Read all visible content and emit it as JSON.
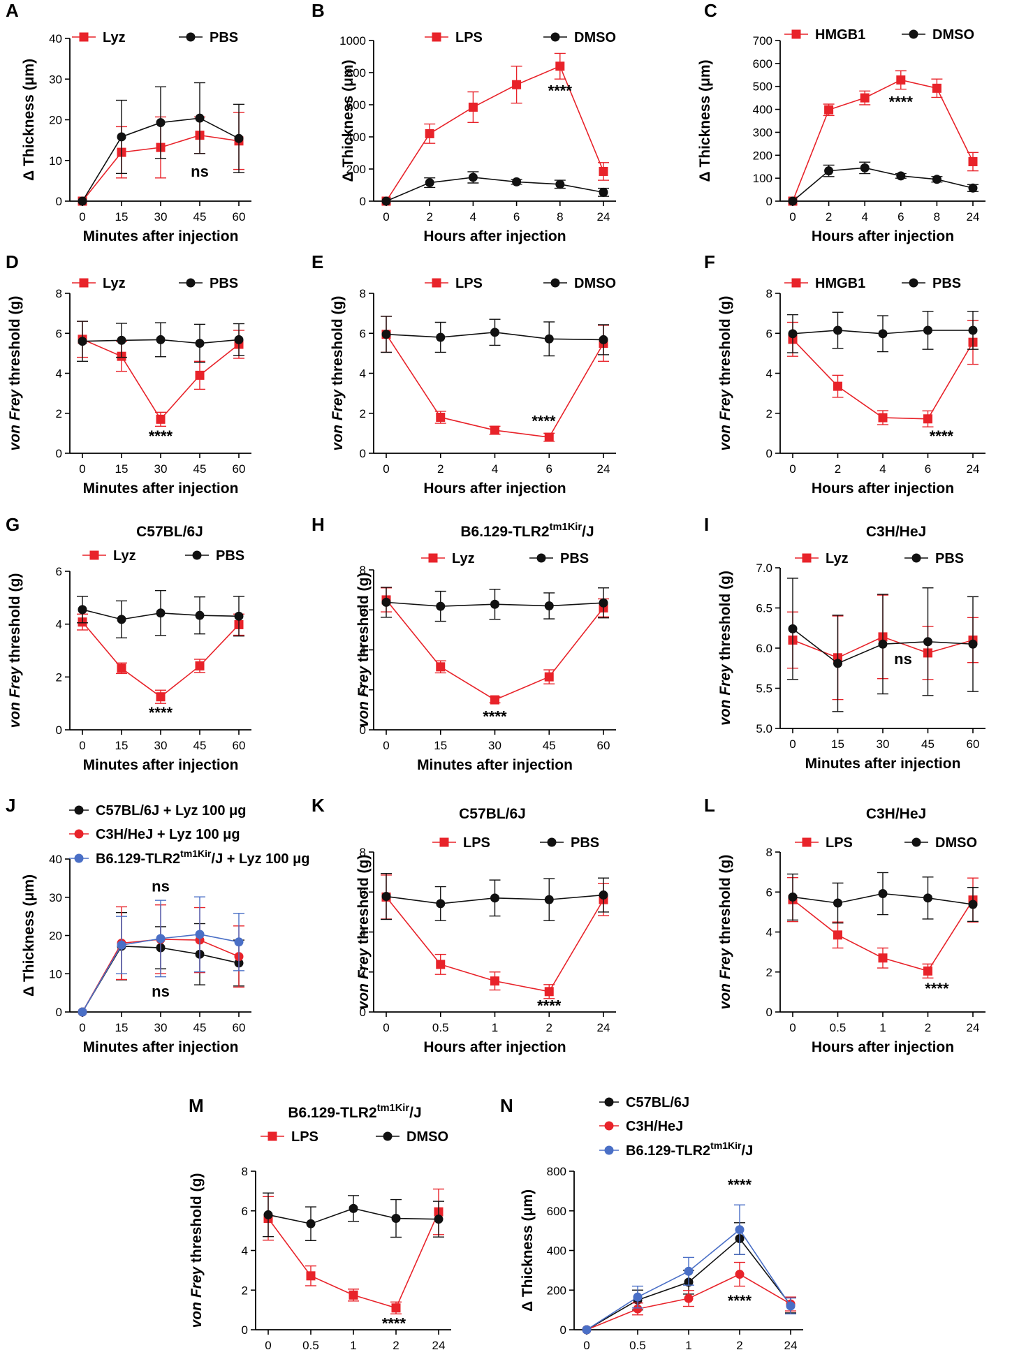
{
  "colors": {
    "red": "#e8232a",
    "black": "#111111",
    "blue": "#4a6fc6",
    "axis": "#000000"
  },
  "chart_data": [
    {
      "id": "A",
      "letter": "A",
      "type": "line",
      "title": "",
      "xlabel": "Minutes after injection",
      "ylabel": "Δ Thickness (μm)",
      "categories": [
        "0",
        "15",
        "30",
        "45",
        "60"
      ],
      "yticks": [
        "0",
        "10",
        "20",
        "30",
        "40"
      ],
      "ylim": [
        0,
        40
      ],
      "series": [
        {
          "name": "Lyz",
          "color": "red",
          "marker": "square",
          "values": [
            0,
            12,
            13.2,
            16.2,
            14.8
          ],
          "errors": [
            0,
            6.3,
            7.5,
            4.5,
            7
          ]
        },
        {
          "name": "PBS",
          "color": "black",
          "marker": "circle",
          "values": [
            0,
            15.8,
            19.3,
            20.4,
            15.4
          ],
          "errors": [
            0,
            9,
            8.8,
            8.7,
            8.4
          ]
        }
      ],
      "annotations": [
        {
          "text": "ns",
          "x_index": 3,
          "y": 6
        }
      ]
    },
    {
      "id": "B",
      "letter": "B",
      "type": "line",
      "title": "",
      "xlabel": "Hours after injection",
      "ylabel": "Δ Thickness (μm)",
      "categories": [
        "0",
        "2",
        "4",
        "6",
        "8",
        "24"
      ],
      "yticks": [
        "0",
        "200",
        "400",
        "600",
        "800",
        "1000"
      ],
      "ylim": [
        0,
        1000
      ],
      "series": [
        {
          "name": "LPS",
          "color": "red",
          "marker": "square",
          "values": [
            0,
            420,
            585,
            725,
            840,
            185
          ],
          "errors": [
            0,
            60,
            95,
            115,
            80,
            55
          ]
        },
        {
          "name": "DMSO",
          "color": "black",
          "marker": "circle",
          "values": [
            0,
            115,
            148,
            120,
            105,
            55
          ],
          "errors": [
            0,
            30,
            35,
            15,
            25,
            25
          ]
        }
      ],
      "annotations": [
        {
          "text": "****",
          "x_index": 4.0,
          "y": 655
        }
      ]
    },
    {
      "id": "C",
      "letter": "C",
      "type": "line",
      "title": "",
      "xlabel": "Hours after injection",
      "ylabel": "Δ Thickness (μm)",
      "categories": [
        "0",
        "2",
        "4",
        "6",
        "8",
        "24"
      ],
      "yticks": [
        "0",
        "100",
        "200",
        "300",
        "400",
        "500",
        "600",
        "700"
      ],
      "ylim": [
        0,
        700
      ],
      "series": [
        {
          "name": "HMGB1",
          "color": "red",
          "marker": "square",
          "values": [
            0,
            398,
            450,
            528,
            492,
            172
          ],
          "errors": [
            0,
            25,
            30,
            40,
            40,
            40
          ]
        },
        {
          "name": "DMSO",
          "color": "black",
          "marker": "circle",
          "values": [
            0,
            132,
            145,
            110,
            95,
            57
          ],
          "errors": [
            0,
            25,
            25,
            10,
            12,
            15
          ]
        }
      ],
      "annotations": [
        {
          "text": "****",
          "x_index": 3,
          "y": 410
        }
      ]
    },
    {
      "id": "D",
      "letter": "D",
      "type": "line",
      "title": "",
      "xlabel": "Minutes after injection",
      "ylabel": "von Frey threshold (g)",
      "categories": [
        "0",
        "15",
        "30",
        "45",
        "60"
      ],
      "yticks": [
        "0",
        "2",
        "4",
        "6",
        "8"
      ],
      "ylim": [
        0,
        8
      ],
      "series": [
        {
          "name": "Lyz",
          "color": "red",
          "marker": "square",
          "values": [
            5.7,
            4.85,
            1.7,
            3.9,
            5.45
          ],
          "errors": [
            0.9,
            0.75,
            0.35,
            0.7,
            0.7
          ]
        },
        {
          "name": "PBS",
          "color": "black",
          "marker": "circle",
          "values": [
            5.6,
            5.65,
            5.68,
            5.5,
            5.68
          ],
          "errors": [
            1.0,
            0.85,
            0.85,
            0.95,
            0.8
          ]
        }
      ],
      "annotations": [
        {
          "text": "****",
          "x_index": 2,
          "y": 0.6
        }
      ]
    },
    {
      "id": "E",
      "letter": "E",
      "type": "line",
      "title": "",
      "xlabel": "Hours after injection",
      "ylabel": "von Frey threshold (g)",
      "categories": [
        "0",
        "2",
        "4",
        "6",
        "24"
      ],
      "yticks": [
        "0",
        "2",
        "4",
        "6",
        "8"
      ],
      "ylim": [
        0,
        8
      ],
      "series": [
        {
          "name": "LPS",
          "color": "red",
          "marker": "square",
          "values": [
            5.95,
            1.8,
            1.15,
            0.8,
            5.5
          ],
          "errors": [
            0.9,
            0.3,
            0.2,
            0.2,
            0.9
          ]
        },
        {
          "name": "DMSO",
          "color": "black",
          "marker": "circle",
          "values": [
            5.95,
            5.8,
            6.05,
            5.72,
            5.68
          ],
          "errors": [
            0.9,
            0.75,
            0.65,
            0.85,
            0.75
          ]
        }
      ],
      "annotations": [
        {
          "text": "****",
          "x_index": 2.9,
          "y": 1.35
        }
      ]
    },
    {
      "id": "F",
      "letter": "F",
      "type": "line",
      "title": "",
      "xlabel": "Hours after injection",
      "ylabel": "von Frey threshold (g)",
      "categories": [
        "0",
        "2",
        "4",
        "6",
        "24"
      ],
      "yticks": [
        "0",
        "2",
        "4",
        "6",
        "8"
      ],
      "ylim": [
        0,
        8
      ],
      "series": [
        {
          "name": "HMGB1",
          "color": "red",
          "marker": "square",
          "values": [
            5.7,
            3.35,
            1.78,
            1.72,
            5.55
          ],
          "errors": [
            0.85,
            0.55,
            0.35,
            0.4,
            1.1
          ]
        },
        {
          "name": "PBS",
          "color": "black",
          "marker": "circle",
          "values": [
            5.98,
            6.15,
            5.98,
            6.15,
            6.15
          ],
          "errors": [
            0.95,
            0.9,
            0.9,
            0.95,
            0.95
          ]
        }
      ],
      "annotations": [
        {
          "text": "****",
          "x_index": 3.3,
          "y": 0.6
        }
      ]
    },
    {
      "id": "G",
      "letter": "G",
      "type": "line",
      "title": "C57BL/6J",
      "xlabel": "Minutes after injection",
      "ylabel": "von Frey threshold (g)",
      "categories": [
        "0",
        "15",
        "30",
        "45",
        "60"
      ],
      "yticks": [
        "0",
        "2",
        "4",
        "6"
      ],
      "ylim": [
        0,
        6
      ],
      "series": [
        {
          "name": "Lyz",
          "color": "red",
          "marker": "square",
          "values": [
            4.08,
            2.33,
            1.25,
            2.42,
            3.98
          ],
          "errors": [
            0.3,
            0.2,
            0.25,
            0.25,
            0.4
          ]
        },
        {
          "name": "PBS",
          "color": "black",
          "marker": "circle",
          "values": [
            4.55,
            4.18,
            4.42,
            4.33,
            4.3
          ],
          "errors": [
            0.5,
            0.7,
            0.85,
            0.7,
            0.75
          ]
        }
      ],
      "annotations": [
        {
          "text": "****",
          "x_index": 2,
          "y": 0.45
        }
      ]
    },
    {
      "id": "H",
      "letter": "H",
      "type": "line",
      "title": "B6.129-TLR2",
      "title_sup": "tm1Kir",
      "title_suffix": "/J",
      "xlabel": "Minutes after injection",
      "ylabel": "von Frey threshold (g)",
      "categories": [
        "0",
        "15",
        "30",
        "45",
        "60"
      ],
      "yticks": [
        "0",
        "2",
        "4",
        "6",
        "8"
      ],
      "ylim": [
        0,
        8
      ],
      "series": [
        {
          "name": "Lyz",
          "color": "red",
          "marker": "square",
          "values": [
            6.5,
            3.15,
            1.5,
            2.65,
            6.1
          ],
          "errors": [
            0.6,
            0.3,
            0.15,
            0.35,
            0.45
          ]
        },
        {
          "name": "PBS",
          "color": "black",
          "marker": "circle",
          "values": [
            6.38,
            6.18,
            6.28,
            6.2,
            6.35
          ],
          "errors": [
            0.75,
            0.75,
            0.75,
            0.65,
            0.75
          ]
        }
      ],
      "annotations": [
        {
          "text": "****",
          "x_index": 2,
          "y": 0.4
        }
      ]
    },
    {
      "id": "I",
      "letter": "I",
      "type": "line",
      "title": "C3H/HeJ",
      "xlabel": "Minutes after injection",
      "ylabel": "von Frey threshold (g)",
      "categories": [
        "0",
        "15",
        "30",
        "45",
        "60"
      ],
      "yticks": [
        "5.0",
        "5.5",
        "6.0",
        "6.5",
        "7.0"
      ],
      "ylim": [
        5.0,
        7.0
      ],
      "series": [
        {
          "name": "Lyz",
          "color": "red",
          "marker": "square",
          "values": [
            6.1,
            5.88,
            6.14,
            5.94,
            6.1
          ],
          "errors": [
            0.35,
            0.52,
            0.52,
            0.33,
            0.28
          ]
        },
        {
          "name": "PBS",
          "color": "black",
          "marker": "circle",
          "values": [
            6.24,
            5.81,
            6.05,
            6.08,
            6.05
          ],
          "errors": [
            0.63,
            0.6,
            0.62,
            0.67,
            0.59
          ]
        }
      ],
      "annotations": [
        {
          "text": "ns",
          "x_index": 2.45,
          "y": 5.8
        }
      ]
    },
    {
      "id": "J",
      "letter": "J",
      "type": "line",
      "title": "",
      "xlabel": "Minutes after injection",
      "ylabel": "Δ Thickness (μm)",
      "categories": [
        "0",
        "15",
        "30",
        "45",
        "60"
      ],
      "yticks": [
        "0",
        "10",
        "20",
        "30",
        "40"
      ],
      "ylim": [
        0,
        40
      ],
      "series": [
        {
          "name": "C57BL/6J + Lyz 100 μg",
          "color": "black",
          "marker": "circle",
          "values": [
            0,
            17.2,
            16.8,
            15.1,
            12.8
          ],
          "errors": [
            0,
            8.8,
            5.5,
            8.0,
            6.0
          ]
        },
        {
          "name": "C3H/HeJ + Lyz 100 μg",
          "color": "red",
          "marker": "circle",
          "values": [
            0,
            18.0,
            19.0,
            18.8,
            14.5
          ],
          "errors": [
            0,
            9.5,
            9.0,
            8.5,
            8.0
          ]
        },
        {
          "name": "B6.129-TLR2",
          "name_sup": "tm1Kir",
          "name_suffix": "/J + Lyz 100 μg",
          "color": "blue",
          "marker": "circle",
          "values": [
            0,
            17.5,
            19.2,
            20.3,
            18.3
          ],
          "errors": [
            0,
            7.5,
            10.0,
            9.8,
            7.5
          ]
        }
      ],
      "annotations": [
        {
          "text": "ns",
          "x_index": 2,
          "y": 31.5
        },
        {
          "text": "ns",
          "x_index": 2,
          "y": 4
        }
      ]
    },
    {
      "id": "K",
      "letter": "K",
      "type": "line",
      "title": "C57BL/6J",
      "xlabel": "Hours after injection",
      "ylabel": "von Frey threshold (g)",
      "categories": [
        "0",
        "0.5",
        "1",
        "2",
        "24"
      ],
      "yticks": [
        "0",
        "2",
        "4",
        "6",
        "8"
      ],
      "ylim": [
        0,
        8
      ],
      "series": [
        {
          "name": "LPS",
          "color": "red",
          "marker": "square",
          "values": [
            5.75,
            2.38,
            1.55,
            1.02,
            5.62
          ],
          "errors": [
            1.1,
            0.5,
            0.45,
            0.35,
            0.8
          ]
        },
        {
          "name": "PBS",
          "color": "black",
          "marker": "circle",
          "values": [
            5.78,
            5.42,
            5.7,
            5.62,
            5.85
          ],
          "errors": [
            1.15,
            0.85,
            0.9,
            1.05,
            0.85
          ]
        }
      ],
      "annotations": [
        {
          "text": "****",
          "x_index": 3,
          "y": 0.05
        }
      ]
    },
    {
      "id": "L",
      "letter": "L",
      "type": "line",
      "title": "C3H/HeJ",
      "xlabel": "Hours after injection",
      "ylabel": "von Frey threshold (g)",
      "categories": [
        "0",
        "0.5",
        "1",
        "2",
        "24"
      ],
      "yticks": [
        "0",
        "2",
        "4",
        "6",
        "8"
      ],
      "ylim": [
        0,
        8
      ],
      "series": [
        {
          "name": "LPS",
          "color": "red",
          "marker": "square",
          "values": [
            5.62,
            3.85,
            2.7,
            2.05,
            5.6
          ],
          "errors": [
            1.1,
            0.65,
            0.5,
            0.35,
            1.1
          ]
        },
        {
          "name": "DMSO",
          "color": "black",
          "marker": "circle",
          "values": [
            5.75,
            5.45,
            5.92,
            5.7,
            5.38
          ],
          "errors": [
            1.15,
            1.0,
            1.05,
            1.05,
            0.85
          ]
        }
      ],
      "annotations": [
        {
          "text": "****",
          "x_index": 3.2,
          "y": 0.9
        }
      ]
    },
    {
      "id": "M",
      "letter": "M",
      "type": "line",
      "title": "B6.129-TLR2",
      "title_sup": "tm1Kir",
      "title_suffix": "/J",
      "xlabel": "Hours after injection",
      "ylabel": "von Frey threshold (g)",
      "categories": [
        "0",
        "0.5",
        "1",
        "2",
        "24"
      ],
      "yticks": [
        "0",
        "2",
        "4",
        "6",
        "8"
      ],
      "ylim": [
        0,
        8
      ],
      "series": [
        {
          "name": "LPS",
          "color": "red",
          "marker": "square",
          "values": [
            5.62,
            2.72,
            1.75,
            1.1,
            5.95
          ],
          "errors": [
            1.1,
            0.5,
            0.3,
            0.3,
            1.15
          ]
        },
        {
          "name": "DMSO",
          "color": "black",
          "marker": "circle",
          "values": [
            5.8,
            5.35,
            6.12,
            5.62,
            5.58
          ],
          "errors": [
            1.1,
            0.85,
            0.65,
            0.95,
            0.9
          ]
        }
      ],
      "annotations": [
        {
          "text": "****",
          "x_index": 2.95,
          "y": 0.05
        }
      ]
    },
    {
      "id": "N",
      "letter": "N",
      "type": "line",
      "title": "",
      "xlabel": "Hours after injection",
      "ylabel": "Δ Thickness (μm)",
      "categories": [
        "0",
        "0.5",
        "1",
        "2",
        "24"
      ],
      "yticks": [
        "0",
        "200",
        "400",
        "600",
        "800"
      ],
      "ylim": [
        0,
        800
      ],
      "series": [
        {
          "name": "C57BL/6J",
          "color": "black",
          "marker": "circle",
          "values": [
            0,
            150,
            240,
            460,
            125
          ],
          "errors": [
            0,
            50,
            60,
            80,
            40
          ]
        },
        {
          "name": "C3H/HeJ",
          "color": "red",
          "marker": "circle",
          "values": [
            0,
            105,
            158,
            280,
            130
          ],
          "errors": [
            0,
            30,
            40,
            60,
            35
          ]
        },
        {
          "name": "B6.129-TLR2",
          "name_sup": "tm1Kir",
          "name_suffix": "/J",
          "color": "blue",
          "marker": "circle",
          "values": [
            0,
            165,
            295,
            505,
            120
          ],
          "errors": [
            0,
            55,
            70,
            125,
            40
          ]
        }
      ],
      "annotations": [
        {
          "text": "****",
          "x_index": 3,
          "y": 705
        },
        {
          "text": "****",
          "x_index": 3,
          "y": 120
        }
      ]
    }
  ]
}
